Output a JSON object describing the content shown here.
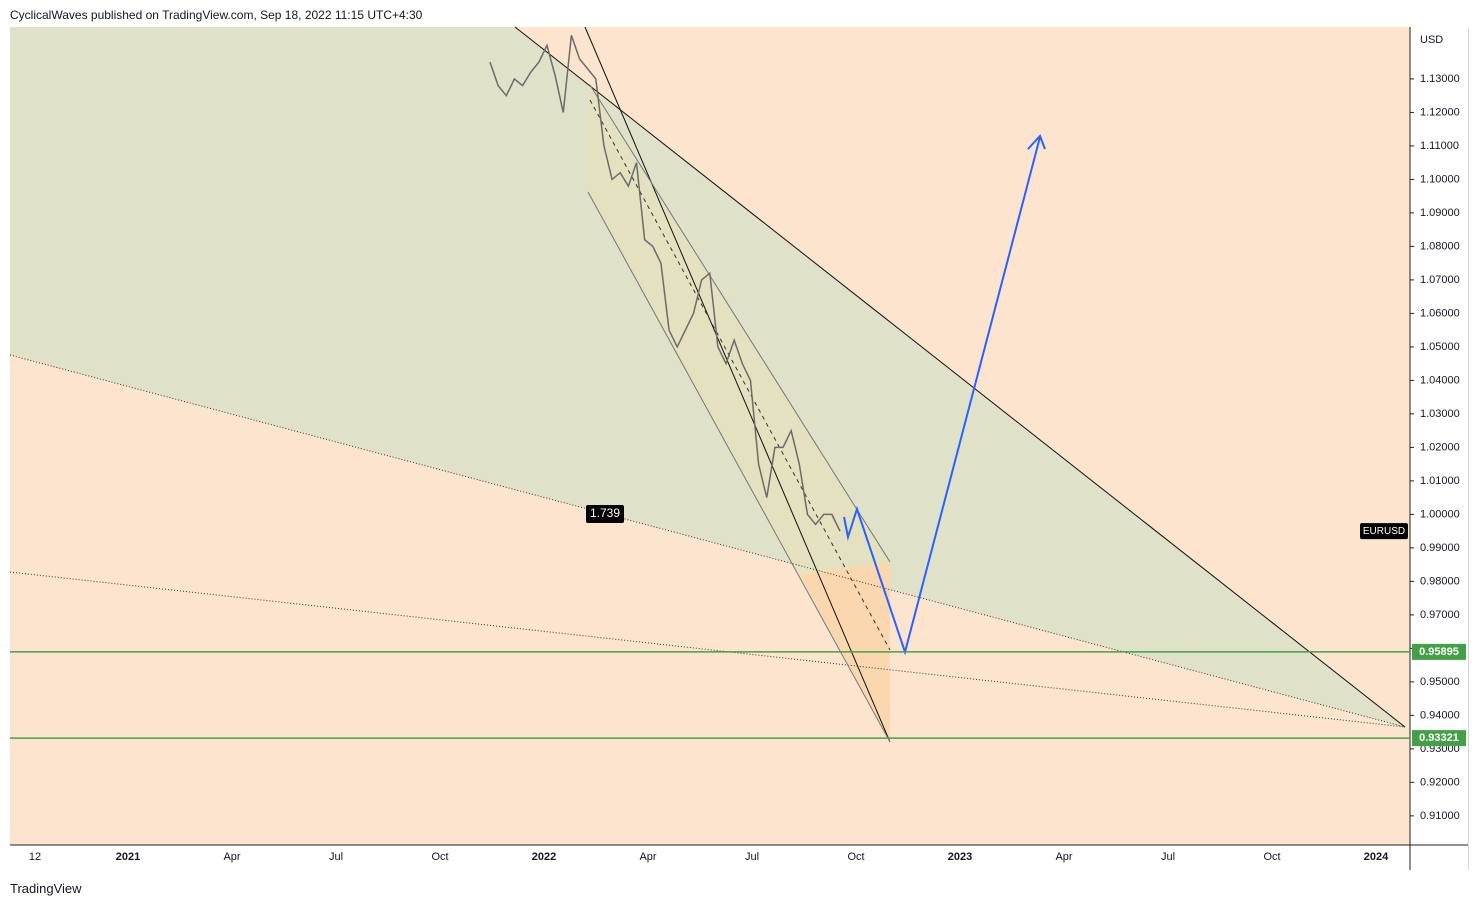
{
  "header": "CyclicalWaves published on TradingView.com, Sep 18, 2022 11:15 UTC+4:30",
  "footer": "TradingView",
  "chart_data": {
    "type": "line",
    "y_unit": "USD",
    "ylim": [
      0.9013,
      1.1455
    ],
    "yticks": [
      {
        "value": 0.91,
        "label": "0.91000"
      },
      {
        "value": 0.92,
        "label": "0.92000"
      },
      {
        "value": 0.93,
        "label": "0.93000"
      },
      {
        "value": 0.94,
        "label": "0.94000"
      },
      {
        "value": 0.95,
        "label": "0.95000"
      },
      {
        "value": 0.96,
        "label": "0.96000"
      },
      {
        "value": 0.97,
        "label": "0.97000"
      },
      {
        "value": 0.98,
        "label": "0.98000"
      },
      {
        "value": 0.99,
        "label": "0.99000"
      },
      {
        "value": 1.0,
        "label": "1.00000"
      },
      {
        "value": 1.01,
        "label": "1.01000"
      },
      {
        "value": 1.02,
        "label": "1.02000"
      },
      {
        "value": 1.03,
        "label": "1.03000"
      },
      {
        "value": 1.04,
        "label": "1.04000"
      },
      {
        "value": 1.05,
        "label": "1.05000"
      },
      {
        "value": 1.06,
        "label": "1.06000"
      },
      {
        "value": 1.07,
        "label": "1.07000"
      },
      {
        "value": 1.08,
        "label": "1.08000"
      },
      {
        "value": 1.09,
        "label": "1.09000"
      },
      {
        "value": 1.1,
        "label": "1.10000"
      },
      {
        "value": 1.11,
        "label": "1.11000"
      },
      {
        "value": 1.12,
        "label": "1.12000"
      },
      {
        "value": 1.13,
        "label": "1.13000"
      }
    ],
    "x_labels": [
      "12",
      "2021",
      "Apr",
      "Jul",
      "Oct",
      "2022",
      "Apr",
      "Jul",
      "Oct",
      "2023",
      "Apr",
      "Jul",
      "Oct",
      "2024"
    ],
    "series": [
      {
        "name": "EURUSD",
        "color": "#6b6b6b",
        "values": [
          1.135,
          1.128,
          1.125,
          1.13,
          1.128,
          1.132,
          1.135,
          1.14,
          1.131,
          1.12,
          1.143,
          1.136,
          1.133,
          1.13,
          1.11,
          1.1,
          1.102,
          1.098,
          1.105,
          1.082,
          1.08,
          1.075,
          1.055,
          1.05,
          1.055,
          1.06,
          1.07,
          1.072,
          1.05,
          1.045,
          1.052,
          1.045,
          1.04,
          1.015,
          1.005,
          1.02,
          1.02,
          1.025,
          1.015,
          1.0,
          0.997,
          1.0,
          1.0,
          0.995
        ]
      }
    ],
    "levels": [
      0.95895,
      0.93321
    ],
    "level_color": "#43a047",
    "annotation": "1.739"
  }
}
